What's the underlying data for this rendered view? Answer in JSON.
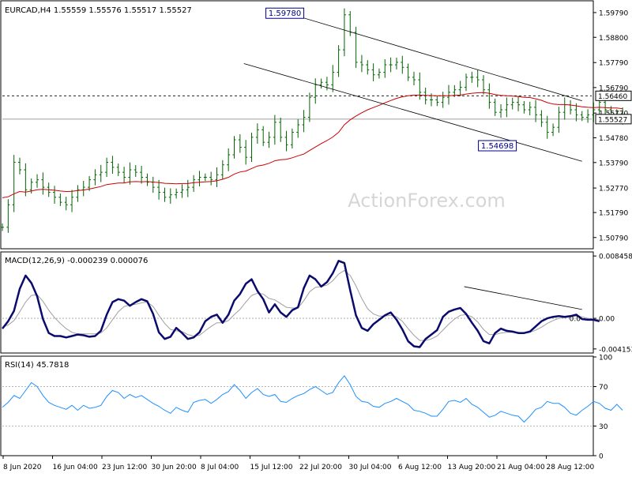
{
  "chart_data": {
    "type": "line",
    "title": "EURCAD,H4  1.55559 1.55576 1.55517 1.55527",
    "watermark": "ActionForex.com",
    "x_labels": [
      "8 Jun 2020",
      "16 Jun 04:00",
      "23 Jun 12:00",
      "30 Jun 20:00",
      "8 Jul 04:00",
      "15 Jul 12:00",
      "22 Jul 20:00",
      "30 Jul 04:00",
      "6 Aug 12:00",
      "13 Aug 20:00",
      "21 Aug 04:00",
      "28 Aug 12:00"
    ],
    "colors": {
      "price_bars": "#006400",
      "moving_average": "#cc0000",
      "macd": "#0b0b6e",
      "signal": "#a0a0a0",
      "rsi": "#1e90ff",
      "trendline": "#000000",
      "level_line": "#808080",
      "background": "#ffffff"
    },
    "price": {
      "ylim": [
        1.5034,
        1.6023
      ],
      "y_ticks": [
        "1.59790",
        "1.58800",
        "1.57790",
        "1.56790",
        "1.55770",
        "1.54780",
        "1.53790",
        "1.52770",
        "1.51790",
        "1.50790"
      ],
      "last_price": "1.55527",
      "level": "1.56460",
      "annotations": [
        {
          "label": "1.59780",
          "x": 147,
          "y": 1.5978
        },
        {
          "label": "1.54698",
          "x": 257,
          "y": 1.547
        }
      ],
      "close_series": [
        1.512,
        1.521,
        1.538,
        1.535,
        1.527,
        1.53,
        1.531,
        1.528,
        1.526,
        1.524,
        1.522,
        1.521,
        1.524,
        1.527,
        1.528,
        1.531,
        1.533,
        1.534,
        1.538,
        1.536,
        1.534,
        1.532,
        1.535,
        1.534,
        1.532,
        1.53,
        1.528,
        1.526,
        1.524,
        1.525,
        1.526,
        1.527,
        1.528,
        1.531,
        1.532,
        1.532,
        1.531,
        1.533,
        1.537,
        1.541,
        1.547,
        1.544,
        1.54,
        1.548,
        1.551,
        1.546,
        1.548,
        1.554,
        1.548,
        1.545,
        1.55,
        1.553,
        1.556,
        1.564,
        1.569,
        1.57,
        1.569,
        1.574,
        1.583,
        1.597,
        1.59,
        1.578,
        1.577,
        1.575,
        1.573,
        1.574,
        1.577,
        1.577,
        1.578,
        1.576,
        1.572,
        1.571,
        1.566,
        1.563,
        1.563,
        1.562,
        1.564,
        1.566,
        1.567,
        1.568,
        1.572,
        1.572,
        1.571,
        1.567,
        1.562,
        1.558,
        1.559,
        1.561,
        1.562,
        1.561,
        1.559,
        1.56,
        1.557,
        1.554,
        1.55,
        1.552,
        1.558,
        1.561,
        1.559,
        1.557,
        1.556,
        1.557,
        1.559,
        1.562,
        1.559,
        1.556,
        1.557,
        1.556
      ],
      "ma_series": [
        1.5238,
        1.5242,
        1.5254,
        1.5263,
        1.5261,
        1.5265,
        1.527,
        1.5272,
        1.527,
        1.5268,
        1.5265,
        1.5263,
        1.5264,
        1.5267,
        1.5269,
        1.5273,
        1.5278,
        1.5283,
        1.5291,
        1.5294,
        1.5297,
        1.5297,
        1.5302,
        1.5303,
        1.5302,
        1.5303,
        1.5301,
        1.5299,
        1.5296,
        1.5295,
        1.5294,
        1.5295,
        1.5295,
        1.5298,
        1.53,
        1.5302,
        1.5303,
        1.5306,
        1.5312,
        1.532,
        1.5333,
        1.5341,
        1.5345,
        1.5355,
        1.5365,
        1.5369,
        1.5376,
        1.5386,
        1.539,
        1.5392,
        1.5398,
        1.5406,
        1.5413,
        1.5427,
        1.5441,
        1.5455,
        1.5467,
        1.5481,
        1.55,
        1.553,
        1.555,
        1.5565,
        1.5578,
        1.559,
        1.5599,
        1.5608,
        1.5618,
        1.5627,
        1.5636,
        1.5642,
        1.5646,
        1.5649,
        1.5649,
        1.5648,
        1.5647,
        1.5646,
        1.5646,
        1.5646,
        1.5648,
        1.5649,
        1.5653,
        1.5656,
        1.5658,
        1.5659,
        1.5656,
        1.5651,
        1.5648,
        1.5646,
        1.5645,
        1.5643,
        1.564,
        1.5639,
        1.5634,
        1.5628,
        1.5619,
        1.5613,
        1.5611,
        1.5611,
        1.5609,
        1.5606,
        1.5602,
        1.56,
        1.5599,
        1.56,
        1.5599,
        1.5597,
        1.5597,
        1.5594
      ],
      "channel_upper": [
        [
          147,
          1.5978
        ],
        [
          300,
          1.5626
        ]
      ],
      "channel_lower": [
        [
          125,
          1.5775
        ],
        [
          300,
          1.5384
        ]
      ],
      "x_max": 305
    },
    "macd": {
      "label": "MACD(12,26,9) -0.000239 0.000076",
      "ylim": [
        -0.0046,
        0.0089
      ],
      "y_ticks": [
        "0.008458",
        "0.00",
        "-0.004153"
      ],
      "zero_tick": "0.0",
      "main_series": [
        -0.0014,
        -0.0004,
        0.001,
        0.004,
        0.0058,
        0.0048,
        0.003,
        -0.0001,
        -0.002,
        -0.0024,
        -0.0024,
        -0.0026,
        -0.0024,
        -0.0022,
        -0.0023,
        -0.0025,
        -0.0024,
        -0.0017,
        0.0005,
        0.0022,
        0.0026,
        0.0024,
        0.0017,
        0.0022,
        0.0026,
        0.0023,
        0.0006,
        -0.0019,
        -0.0028,
        -0.0025,
        -0.0013,
        -0.002,
        -0.0028,
        -0.0026,
        -0.0019,
        -0.0004,
        0.0002,
        0.0005,
        -0.0006,
        0.0005,
        0.0024,
        0.0033,
        0.0047,
        0.0053,
        0.0037,
        0.0026,
        0.0008,
        0.0019,
        0.0008,
        0.0002,
        0.0011,
        0.0015,
        0.0041,
        0.0058,
        0.0053,
        0.0043,
        0.0049,
        0.0061,
        0.0078,
        0.0075,
        0.0038,
        0.0004,
        -0.0013,
        -0.0017,
        -0.0008,
        -0.0002,
        0.0004,
        0.0008,
        -0.0002,
        -0.0015,
        -0.0031,
        -0.0038,
        -0.0039,
        -0.0028,
        -0.0022,
        -0.0016,
        0.0002,
        0.0009,
        0.0012,
        0.0014,
        0.0006,
        -0.0006,
        -0.0017,
        -0.0031,
        -0.0034,
        -0.002,
        -0.0014,
        -0.0017,
        -0.0018,
        -0.002,
        -0.002,
        -0.0018,
        -0.0011,
        -0.0004,
        0.0,
        0.0002,
        0.0003,
        0.0002,
        0.0003,
        0.0005,
        -0.0001,
        -0.0002,
        -0.0002,
        -0.0004
      ],
      "signal_series": [
        -0.0012,
        -0.0009,
        -0.0003,
        0.0009,
        0.0022,
        0.0031,
        0.0032,
        0.0023,
        0.0011,
        0.0001,
        -0.0007,
        -0.0014,
        -0.0019,
        -0.0021,
        -0.0021,
        -0.0021,
        -0.0021,
        -0.002,
        -0.0013,
        -0.0002,
        0.0009,
        0.0016,
        0.0018,
        0.0019,
        0.0021,
        0.0022,
        0.0016,
        0.0004,
        -0.0007,
        -0.0015,
        -0.0017,
        -0.0018,
        -0.0022,
        -0.0024,
        -0.0023,
        -0.0017,
        -0.0011,
        -0.0006,
        -0.0006,
        -0.0003,
        0.0005,
        0.0012,
        0.0022,
        0.0031,
        0.0034,
        0.0033,
        0.0027,
        0.0025,
        0.002,
        0.0015,
        0.0014,
        0.0014,
        0.0024,
        0.0036,
        0.0042,
        0.0043,
        0.0045,
        0.0051,
        0.006,
        0.0065,
        0.0058,
        0.0044,
        0.0027,
        0.0013,
        0.0006,
        0.0003,
        0.0003,
        0.0004,
        0.0002,
        -0.0004,
        -0.0014,
        -0.0023,
        -0.003,
        -0.003,
        -0.0028,
        -0.0024,
        -0.0016,
        -0.0008,
        -0.0001,
        0.0004,
        0.0005,
        0.0002,
        -0.0005,
        -0.0015,
        -0.0022,
        -0.0022,
        -0.002,
        -0.0019,
        -0.0019,
        -0.0019,
        -0.002,
        -0.0019,
        -0.0016,
        -0.0012,
        -0.0007,
        -0.0003,
        0.0,
        0.0001,
        0.0002,
        0.0003,
        0.0002,
        0.0,
        -0.0001,
        -0.0002
      ],
      "trendline": [
        [
          239,
          0.0043
        ],
        [
          300,
          0.0012
        ]
      ]
    },
    "rsi": {
      "label": "RSI(14) 45.7818",
      "ylim": [
        0,
        100
      ],
      "y_ticks": [
        "100",
        "70",
        "30",
        "0"
      ],
      "levels": [
        70,
        30
      ],
      "series": [
        49,
        54,
        61,
        58,
        66,
        74,
        70,
        61,
        54,
        51,
        49,
        47,
        51,
        46,
        51,
        48,
        49,
        51,
        60,
        66,
        64,
        58,
        62,
        59,
        61,
        57,
        53,
        50,
        46,
        43,
        49,
        46,
        44,
        54,
        56,
        57,
        53,
        57,
        62,
        65,
        72,
        66,
        58,
        64,
        68,
        62,
        60,
        62,
        55,
        54,
        58,
        61,
        63,
        67,
        70,
        66,
        62,
        64,
        74,
        81,
        72,
        60,
        55,
        54,
        50,
        49,
        53,
        55,
        58,
        55,
        52,
        46,
        45,
        43,
        40,
        40,
        47,
        55,
        56,
        54,
        58,
        52,
        49,
        44,
        39,
        41,
        45,
        43,
        41,
        40,
        34,
        40,
        47,
        49,
        55,
        53,
        53,
        49,
        43,
        41,
        46,
        50,
        55,
        53,
        48,
        46,
        52,
        46
      ]
    }
  }
}
